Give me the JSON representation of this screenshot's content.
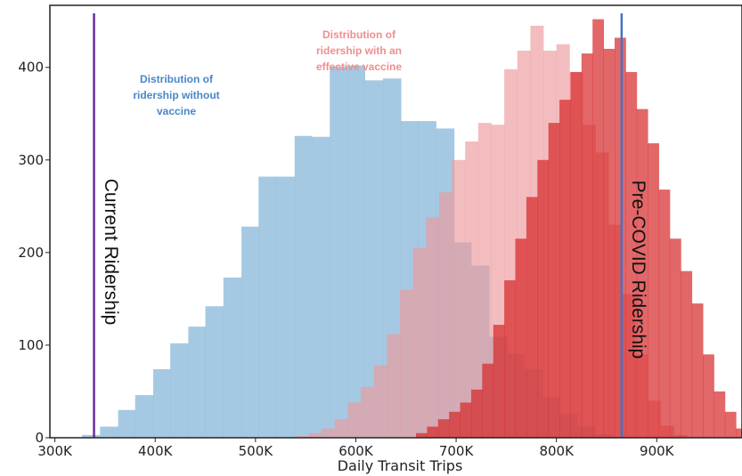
{
  "chart_data": {
    "type": "histogram",
    "xlabel": "Daily Transit Trips",
    "ylabel": "",
    "xlim": [
      295000,
      985000
    ],
    "ylim": [
      0,
      467
    ],
    "x_ticks": [
      {
        "value": 300000,
        "label": "300K"
      },
      {
        "value": 400000,
        "label": "400K"
      },
      {
        "value": 500000,
        "label": "500K"
      },
      {
        "value": 600000,
        "label": "600K"
      },
      {
        "value": 700000,
        "label": "700K"
      },
      {
        "value": 800000,
        "label": "800K"
      },
      {
        "value": 900000,
        "label": "900K"
      }
    ],
    "y_ticks": [
      {
        "value": 0,
        "label": "0"
      },
      {
        "value": 100,
        "label": "100"
      },
      {
        "value": 200,
        "label": "200"
      },
      {
        "value": 300,
        "label": "300"
      },
      {
        "value": 400,
        "label": "400"
      }
    ],
    "series": [
      {
        "name": "",
        "color": "#8fbcdb",
        "opacity": 0.8,
        "bins": [
          [
            327000,
            345000,
            3
          ],
          [
            345000,
            363000,
            12
          ],
          [
            363000,
            380000,
            30
          ],
          [
            380000,
            398000,
            46
          ],
          [
            398000,
            415000,
            74
          ],
          [
            415000,
            433000,
            102
          ],
          [
            433000,
            450000,
            120
          ],
          [
            450000,
            468000,
            142
          ],
          [
            468000,
            486000,
            173
          ],
          [
            486000,
            503000,
            228
          ],
          [
            503000,
            521000,
            282
          ],
          [
            521000,
            539000,
            282
          ],
          [
            539000,
            556000,
            326
          ],
          [
            556000,
            574000,
            325
          ],
          [
            574000,
            592000,
            401
          ],
          [
            592000,
            609000,
            402
          ],
          [
            609000,
            627000,
            386
          ],
          [
            627000,
            645000,
            388
          ],
          [
            645000,
            662000,
            342
          ],
          [
            662000,
            680000,
            342
          ],
          [
            680000,
            698000,
            334
          ],
          [
            698000,
            715000,
            211
          ],
          [
            715000,
            733000,
            186
          ],
          [
            733000,
            751000,
            109
          ],
          [
            751000,
            768000,
            91
          ],
          [
            768000,
            786000,
            74
          ],
          [
            786000,
            803000,
            44
          ],
          [
            803000,
            821000,
            26
          ],
          [
            821000,
            839000,
            12
          ],
          [
            839000,
            856000,
            4
          ]
        ]
      },
      {
        "name": "",
        "color": "#ec9a9d",
        "opacity": 0.65,
        "bins": [
          [
            540000,
            553000,
            2
          ],
          [
            553000,
            566000,
            5
          ],
          [
            566000,
            579000,
            10
          ],
          [
            579000,
            592000,
            20
          ],
          [
            592000,
            605000,
            38
          ],
          [
            605000,
            618000,
            55
          ],
          [
            618000,
            631000,
            78
          ],
          [
            631000,
            644000,
            112
          ],
          [
            644000,
            657000,
            160
          ],
          [
            657000,
            670000,
            205
          ],
          [
            670000,
            683000,
            238
          ],
          [
            683000,
            696000,
            265
          ],
          [
            696000,
            709000,
            300
          ],
          [
            709000,
            722000,
            320
          ],
          [
            722000,
            735000,
            340
          ],
          [
            735000,
            748000,
            338
          ],
          [
            748000,
            761000,
            398
          ],
          [
            761000,
            774000,
            418
          ],
          [
            774000,
            787000,
            445
          ],
          [
            787000,
            800000,
            418
          ],
          [
            800000,
            813000,
            425
          ],
          [
            813000,
            826000,
            395
          ],
          [
            826000,
            839000,
            338
          ],
          [
            839000,
            852000,
            308
          ],
          [
            852000,
            865000,
            230
          ],
          [
            865000,
            878000,
            155
          ],
          [
            878000,
            891000,
            90
          ],
          [
            891000,
            904000,
            40
          ],
          [
            904000,
            917000,
            13
          ],
          [
            917000,
            930000,
            3
          ]
        ]
      },
      {
        "name": "",
        "color": "#d62728",
        "opacity": 0.7,
        "bins": [
          [
            660000,
            671000,
            5
          ],
          [
            671000,
            682000,
            12
          ],
          [
            682000,
            693000,
            20
          ],
          [
            693000,
            704000,
            28
          ],
          [
            704000,
            715000,
            38
          ],
          [
            715000,
            726000,
            52
          ],
          [
            726000,
            737000,
            80
          ],
          [
            737000,
            748000,
            122
          ],
          [
            748000,
            759000,
            170
          ],
          [
            759000,
            770000,
            215
          ],
          [
            770000,
            781000,
            260
          ],
          [
            781000,
            792000,
            300
          ],
          [
            792000,
            803000,
            340
          ],
          [
            803000,
            814000,
            365
          ],
          [
            814000,
            825000,
            395
          ],
          [
            825000,
            836000,
            415
          ],
          [
            836000,
            847000,
            452
          ],
          [
            847000,
            858000,
            420
          ],
          [
            858000,
            869000,
            432
          ],
          [
            869000,
            880000,
            395
          ],
          [
            880000,
            891000,
            355
          ],
          [
            891000,
            902000,
            318
          ],
          [
            902000,
            913000,
            268
          ],
          [
            913000,
            924000,
            215
          ],
          [
            924000,
            935000,
            180
          ],
          [
            935000,
            946000,
            145
          ],
          [
            946000,
            957000,
            90
          ],
          [
            957000,
            968000,
            50
          ],
          [
            968000,
            979000,
            28
          ],
          [
            979000,
            990000,
            10
          ]
        ]
      }
    ],
    "reference_lines": [
      {
        "x": 339000,
        "label": "Current Ridership",
        "color": "#6a2ca0"
      },
      {
        "x": 865000,
        "label": "Pre-COVID Ridership",
        "color": "#4472c4"
      }
    ],
    "annotations": [
      {
        "lines": [
          "Distribution of",
          "ridership without",
          "vaccine"
        ],
        "color": "#4a86c8"
      },
      {
        "lines": [
          "Distribution of",
          "ridership with an",
          "effective vaccine"
        ],
        "color": "#ef8e8e"
      }
    ],
    "grid": false
  }
}
